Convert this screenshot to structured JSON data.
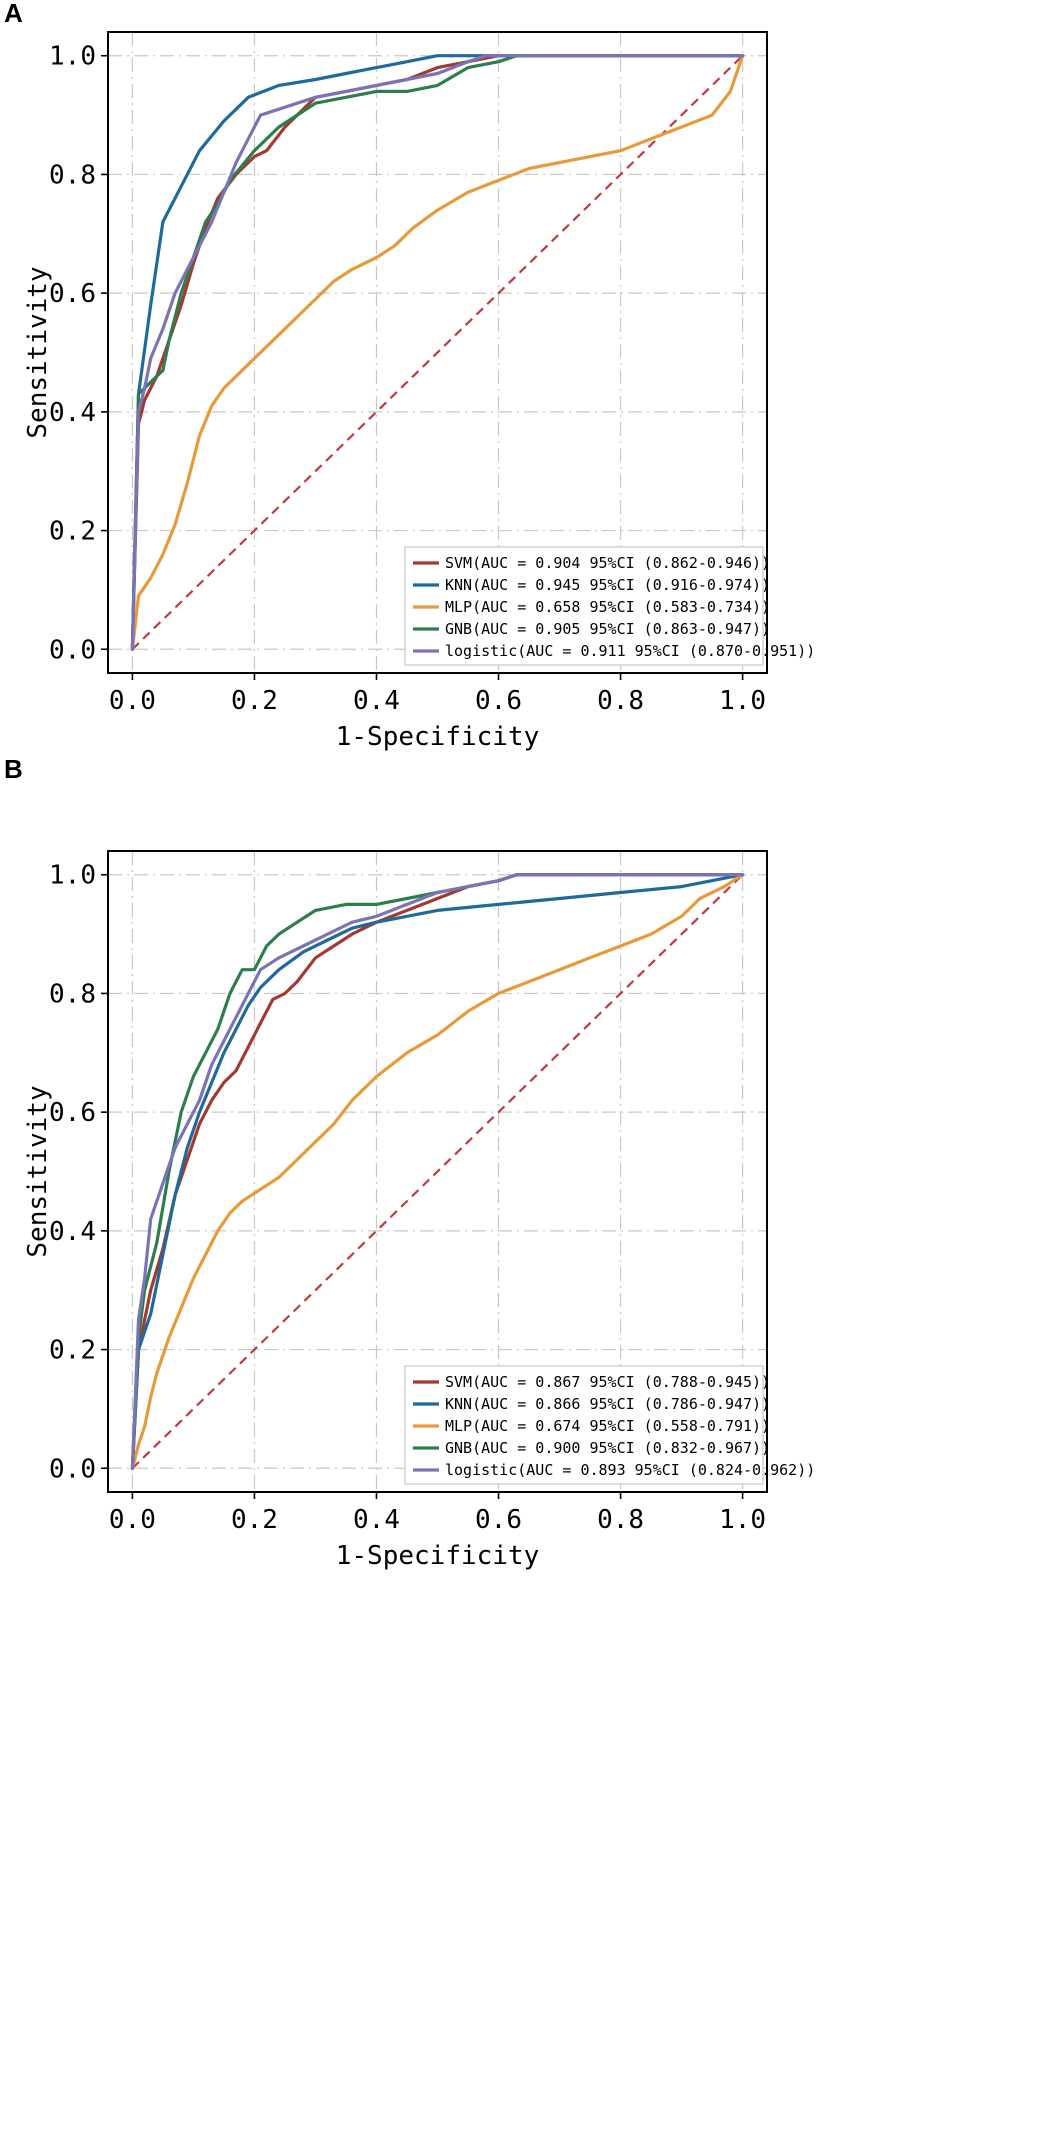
{
  "colors": {
    "SVM": "#a33a2f",
    "KNN": "#1f6a9b",
    "MLP": "#e69a3a",
    "GNB": "#2e7d4f",
    "logistic": "#7a73b5",
    "chance": "#c0393b"
  },
  "chart_data": [
    {
      "panel": "A",
      "type": "line",
      "title": "",
      "xlabel": "1-Specificity",
      "ylabel": "Sensitivity",
      "xlim": [
        0,
        1
      ],
      "ylim": [
        0,
        1
      ],
      "xticks": [
        "0.0",
        "0.2",
        "0.4",
        "0.6",
        "0.8",
        "1.0"
      ],
      "yticks": [
        "0.0",
        "0.2",
        "0.4",
        "0.6",
        "0.8",
        "1.0"
      ],
      "grid": true,
      "legend_position": "bottom-right",
      "chance_line": [
        [
          0,
          0
        ],
        [
          1,
          1
        ]
      ],
      "series": [
        {
          "name": "SVM",
          "label": "SVM(AUC = 0.904 95%CI (0.862-0.946))",
          "x": [
            0,
            0.01,
            0.02,
            0.04,
            0.06,
            0.08,
            0.1,
            0.12,
            0.14,
            0.17,
            0.2,
            0.22,
            0.25,
            0.28,
            0.3,
            0.35,
            0.4,
            0.45,
            0.5,
            0.55,
            0.6,
            1.0
          ],
          "y": [
            0,
            0.38,
            0.42,
            0.46,
            0.52,
            0.58,
            0.65,
            0.71,
            0.76,
            0.8,
            0.83,
            0.84,
            0.88,
            0.91,
            0.93,
            0.94,
            0.95,
            0.96,
            0.98,
            0.99,
            1.0,
            1.0
          ]
        },
        {
          "name": "KNN",
          "label": "KNN(AUC = 0.945 95%CI (0.916-0.974))",
          "x": [
            0,
            0.01,
            0.03,
            0.05,
            0.08,
            0.11,
            0.15,
            0.19,
            0.24,
            0.3,
            0.35,
            0.4,
            0.45,
            0.5,
            0.55,
            1.0
          ],
          "y": [
            0,
            0.43,
            0.58,
            0.72,
            0.78,
            0.84,
            0.89,
            0.93,
            0.95,
            0.96,
            0.97,
            0.98,
            0.99,
            1.0,
            1.0,
            1.0
          ]
        },
        {
          "name": "MLP",
          "label": "MLP(AUC = 0.658 95%CI (0.583-0.734))",
          "x": [
            0,
            0.01,
            0.03,
            0.05,
            0.07,
            0.09,
            0.11,
            0.13,
            0.15,
            0.18,
            0.21,
            0.24,
            0.27,
            0.3,
            0.33,
            0.36,
            0.4,
            0.43,
            0.46,
            0.5,
            0.55,
            0.6,
            0.65,
            0.7,
            0.75,
            0.8,
            0.85,
            0.9,
            0.95,
            0.98,
            1.0
          ],
          "y": [
            0,
            0.09,
            0.12,
            0.16,
            0.21,
            0.28,
            0.36,
            0.41,
            0.44,
            0.47,
            0.5,
            0.53,
            0.56,
            0.59,
            0.62,
            0.64,
            0.66,
            0.68,
            0.71,
            0.74,
            0.77,
            0.79,
            0.81,
            0.82,
            0.83,
            0.84,
            0.86,
            0.88,
            0.9,
            0.94,
            1.0
          ]
        },
        {
          "name": "GNB",
          "label": "GNB(AUC = 0.905 95%CI (0.863-0.947))",
          "x": [
            0,
            0.01,
            0.02,
            0.04,
            0.05,
            0.06,
            0.08,
            0.1,
            0.12,
            0.14,
            0.16,
            0.2,
            0.24,
            0.27,
            0.3,
            0.35,
            0.4,
            0.45,
            0.5,
            0.55,
            0.6,
            0.63,
            1.0
          ],
          "y": [
            0,
            0.43,
            0.44,
            0.46,
            0.47,
            0.52,
            0.6,
            0.66,
            0.72,
            0.75,
            0.79,
            0.84,
            0.88,
            0.9,
            0.92,
            0.93,
            0.94,
            0.94,
            0.95,
            0.98,
            0.99,
            1.0,
            1.0
          ]
        },
        {
          "name": "logistic",
          "label": "logistic(AUC = 0.911 95%CI (0.870-0.951))",
          "x": [
            0,
            0.01,
            0.02,
            0.03,
            0.05,
            0.07,
            0.09,
            0.11,
            0.13,
            0.15,
            0.17,
            0.19,
            0.21,
            0.24,
            0.27,
            0.3,
            0.35,
            0.4,
            0.45,
            0.5,
            0.55,
            0.58,
            1.0
          ],
          "y": [
            0,
            0.4,
            0.44,
            0.49,
            0.54,
            0.6,
            0.64,
            0.68,
            0.72,
            0.77,
            0.82,
            0.86,
            0.9,
            0.91,
            0.92,
            0.93,
            0.94,
            0.95,
            0.96,
            0.97,
            0.99,
            1.0,
            1.0
          ]
        }
      ]
    },
    {
      "panel": "B",
      "type": "line",
      "title": "",
      "xlabel": "1-Specificity",
      "ylabel": "Sensitivity",
      "xlim": [
        0,
        1
      ],
      "ylim": [
        0,
        1
      ],
      "xticks": [
        "0.0",
        "0.2",
        "0.4",
        "0.6",
        "0.8",
        "1.0"
      ],
      "yticks": [
        "0.0",
        "0.2",
        "0.4",
        "0.6",
        "0.8",
        "1.0"
      ],
      "grid": true,
      "legend_position": "bottom-right",
      "chance_line": [
        [
          0,
          0
        ],
        [
          1,
          1
        ]
      ],
      "series": [
        {
          "name": "SVM",
          "label": "SVM(AUC = 0.867 95%CI (0.788-0.945))",
          "x": [
            0,
            0.01,
            0.02,
            0.03,
            0.05,
            0.07,
            0.09,
            0.11,
            0.13,
            0.15,
            0.17,
            0.19,
            0.21,
            0.23,
            0.25,
            0.27,
            0.3,
            0.33,
            0.36,
            0.4,
            0.45,
            0.5,
            0.55,
            0.6,
            0.63,
            1.0
          ],
          "y": [
            0,
            0.2,
            0.25,
            0.3,
            0.37,
            0.46,
            0.52,
            0.58,
            0.62,
            0.65,
            0.67,
            0.71,
            0.75,
            0.79,
            0.8,
            0.82,
            0.86,
            0.88,
            0.9,
            0.92,
            0.94,
            0.96,
            0.98,
            0.99,
            1.0,
            1.0
          ]
        },
        {
          "name": "KNN",
          "label": "KNN(AUC = 0.866 95%CI (0.786-0.947))",
          "x": [
            0,
            0.01,
            0.03,
            0.05,
            0.07,
            0.09,
            0.11,
            0.13,
            0.15,
            0.17,
            0.19,
            0.21,
            0.24,
            0.28,
            0.32,
            0.36,
            0.4,
            0.45,
            0.5,
            0.6,
            0.7,
            0.8,
            0.9,
            1.0
          ],
          "y": [
            0,
            0.2,
            0.26,
            0.36,
            0.46,
            0.54,
            0.6,
            0.65,
            0.7,
            0.74,
            0.78,
            0.81,
            0.84,
            0.87,
            0.89,
            0.91,
            0.92,
            0.93,
            0.94,
            0.95,
            0.96,
            0.97,
            0.98,
            1.0
          ]
        },
        {
          "name": "MLP",
          "label": "MLP(AUC = 0.674 95%CI (0.558-0.791))",
          "x": [
            0,
            0.01,
            0.02,
            0.03,
            0.04,
            0.05,
            0.06,
            0.08,
            0.1,
            0.12,
            0.14,
            0.16,
            0.18,
            0.21,
            0.24,
            0.27,
            0.3,
            0.33,
            0.36,
            0.4,
            0.45,
            0.5,
            0.55,
            0.6,
            0.65,
            0.7,
            0.75,
            0.8,
            0.85,
            0.9,
            0.93,
            0.97,
            1.0
          ],
          "y": [
            0,
            0.04,
            0.07,
            0.12,
            0.16,
            0.19,
            0.22,
            0.27,
            0.32,
            0.36,
            0.4,
            0.43,
            0.45,
            0.47,
            0.49,
            0.52,
            0.55,
            0.58,
            0.62,
            0.66,
            0.7,
            0.73,
            0.77,
            0.8,
            0.82,
            0.84,
            0.86,
            0.88,
            0.9,
            0.93,
            0.96,
            0.98,
            1.0
          ]
        },
        {
          "name": "GNB",
          "label": "GNB(AUC = 0.900 95%CI (0.832-0.967))",
          "x": [
            0,
            0.01,
            0.02,
            0.04,
            0.06,
            0.08,
            0.1,
            0.12,
            0.14,
            0.16,
            0.18,
            0.2,
            0.22,
            0.24,
            0.27,
            0.3,
            0.35,
            0.4,
            0.45,
            0.5,
            0.55,
            0.6,
            0.63,
            1.0
          ],
          "y": [
            0,
            0.22,
            0.3,
            0.38,
            0.5,
            0.6,
            0.66,
            0.7,
            0.74,
            0.8,
            0.84,
            0.84,
            0.88,
            0.9,
            0.92,
            0.94,
            0.95,
            0.95,
            0.96,
            0.97,
            0.98,
            0.99,
            1.0,
            1.0
          ]
        },
        {
          "name": "logistic",
          "label": "logistic(AUC = 0.893 95%CI (0.824-0.962))",
          "x": [
            0,
            0.01,
            0.02,
            0.03,
            0.05,
            0.07,
            0.09,
            0.11,
            0.13,
            0.15,
            0.17,
            0.19,
            0.21,
            0.24,
            0.28,
            0.32,
            0.36,
            0.4,
            0.45,
            0.5,
            0.55,
            0.6,
            0.63,
            1.0
          ],
          "y": [
            0,
            0.25,
            0.32,
            0.42,
            0.48,
            0.54,
            0.58,
            0.62,
            0.68,
            0.72,
            0.76,
            0.8,
            0.84,
            0.86,
            0.88,
            0.9,
            0.92,
            0.93,
            0.95,
            0.97,
            0.98,
            0.99,
            1.0,
            1.0
          ]
        }
      ]
    }
  ]
}
